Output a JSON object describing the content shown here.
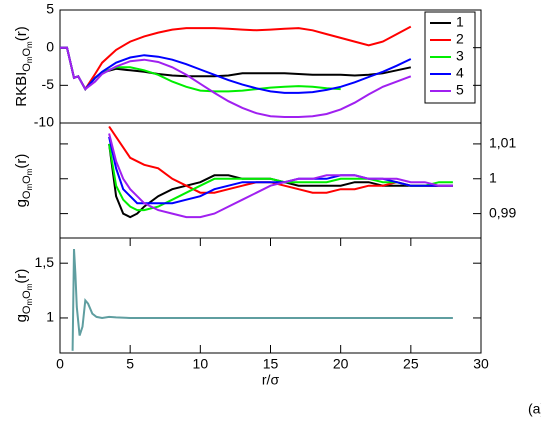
{
  "chart_data": [
    {
      "type": "line",
      "ylabel": [
        "RKBI",
        "O",
        "m",
        "O",
        "m",
        "(r)"
      ],
      "xlim": [
        0,
        30
      ],
      "ylim": [
        -10,
        5
      ],
      "yticks": [
        -10,
        -5,
        0,
        5
      ],
      "yaxis_side": "left",
      "legend": "upper right",
      "x": [
        0,
        0.5,
        1,
        1.3,
        1.8,
        2.5,
        3,
        4,
        5,
        6,
        7,
        8,
        9,
        10,
        11,
        12,
        13,
        14,
        15,
        16,
        17,
        18,
        19,
        20,
        21,
        22,
        23,
        24,
        25
      ],
      "series": [
        {
          "name": "1",
          "color": "#000000",
          "values": [
            0,
            0,
            -4,
            -3.8,
            -5.5,
            -4,
            -3.3,
            -2.8,
            -3,
            -3.2,
            -3.5,
            -3.7,
            -3.8,
            -3.8,
            -3.8,
            -3.7,
            -3.4,
            -3.4,
            -3.4,
            -3.4,
            -3.5,
            -3.6,
            -3.6,
            -3.6,
            -3.7,
            -3.6,
            -3.4,
            -3,
            -2.6
          ]
        },
        {
          "name": "2",
          "color": "#ff0000",
          "values": [
            0,
            0,
            -4,
            -3.8,
            -5.5,
            -3.5,
            -2,
            -0.3,
            0.8,
            1.5,
            2,
            2.4,
            2.6,
            2.6,
            2.6,
            2.5,
            2.4,
            2.3,
            2.4,
            2.5,
            2.6,
            2.3,
            1.8,
            1.3,
            0.8,
            0.3,
            0.8,
            1.8,
            2.8
          ]
        },
        {
          "name": "3",
          "color": "#00ee00",
          "values": [
            0,
            0,
            -4,
            -3.8,
            -5.5,
            -4,
            -3.3,
            -2.6,
            -2.6,
            -3,
            -3.6,
            -4.5,
            -5.2,
            -5.7,
            -5.8,
            -5.8,
            -5.7,
            -5.5,
            -5.3,
            -5.2,
            -5.1,
            -5.2,
            -5.4,
            -5.5,
            null,
            null,
            null,
            null,
            null
          ]
        },
        {
          "name": "4",
          "color": "#0000ff",
          "values": [
            0,
            0,
            -4,
            -3.8,
            -5.5,
            -4,
            -3.2,
            -2,
            -1.3,
            -1,
            -1.2,
            -1.6,
            -2.2,
            -2.9,
            -3.6,
            -4.3,
            -4.9,
            -5.4,
            -5.8,
            -6,
            -6,
            -5.9,
            -5.6,
            -5.2,
            -4.6,
            -3.9,
            -3.2,
            -2.4,
            -1.5
          ]
        },
        {
          "name": "5",
          "color": "#a020f0",
          "values": [
            0,
            0,
            -4,
            -3.8,
            -5.5,
            -4.5,
            -3.5,
            -2.5,
            -1.8,
            -1.6,
            -1.9,
            -2.6,
            -3.6,
            -4.8,
            -6,
            -7.1,
            -8,
            -8.7,
            -9.1,
            -9.2,
            -9.2,
            -9.1,
            -8.8,
            -8.2,
            -7.3,
            -6.2,
            -5.2,
            -4.5,
            -3.8
          ]
        }
      ]
    },
    {
      "type": "line",
      "ylabel": [
        "g",
        "O",
        "m",
        "O",
        "m",
        "(r)"
      ],
      "xlim": [
        0,
        30
      ],
      "ylim": [
        0.983,
        1.016
      ],
      "yticks": [
        {
          "value": 0.99,
          "label": "0,99"
        },
        1,
        {
          "value": 1.01,
          "label": "1,01"
        }
      ],
      "yaxis_side": "right",
      "x": [
        3.5,
        4,
        4.5,
        5,
        5.5,
        6,
        7,
        8,
        9,
        10,
        11,
        12,
        13,
        14,
        15,
        16,
        17,
        18,
        19,
        20,
        21,
        22,
        23,
        24,
        25,
        26,
        27,
        28
      ],
      "series": [
        {
          "color": "#000000",
          "values": [
            1.01,
            0.995,
            0.99,
            0.989,
            0.99,
            0.992,
            0.995,
            0.997,
            0.998,
            0.999,
            1.001,
            1.001,
            1.0,
            1.0,
            1.0,
            0.999,
            0.998,
            0.998,
            0.998,
            0.998,
            0.999,
            0.999,
            0.998,
            0.998,
            0.998,
            0.998,
            0.998,
            0.998
          ]
        },
        {
          "color": "#ff0000",
          "values": [
            1.015,
            1.012,
            1.009,
            1.006,
            1.005,
            1.004,
            1.003,
            1.0,
            0.998,
            0.996,
            0.996,
            0.997,
            0.998,
            0.999,
            0.999,
            0.998,
            0.997,
            0.996,
            0.996,
            0.997,
            0.997,
            0.998,
            0.998,
            0.999,
            0.998,
            0.998,
            0.998,
            0.998
          ]
        },
        {
          "color": "#00ee00",
          "values": [
            1.01,
            0.998,
            0.994,
            0.992,
            0.991,
            0.991,
            0.992,
            0.994,
            0.996,
            0.998,
            1.0,
            1.0,
            1.0,
            1.0,
            1.0,
            0.999,
            0.999,
            0.999,
            0.999,
            1.0,
            1.0,
            1.0,
            0.999,
            0.999,
            0.998,
            0.998,
            0.999,
            0.999
          ]
        },
        {
          "color": "#0000ff",
          "values": [
            1.012,
            1.003,
            0.997,
            0.995,
            0.993,
            0.993,
            0.993,
            0.993,
            0.994,
            0.995,
            0.997,
            0.998,
            0.999,
            0.999,
            0.999,
            0.999,
            1.0,
            1.0,
            1.0,
            1.001,
            1.001,
            1.0,
            1.0,
            0.999,
            0.998,
            0.998,
            0.998,
            0.998
          ]
        },
        {
          "color": "#a020f0",
          "values": [
            1.013,
            1.005,
            1.0,
            0.997,
            0.995,
            0.993,
            0.991,
            0.99,
            0.989,
            0.989,
            0.99,
            0.992,
            0.994,
            0.996,
            0.998,
            0.999,
            1.0,
            1.0,
            1.001,
            1.001,
            1.001,
            1.0,
            1.0,
            1.0,
            0.999,
            0.999,
            0.998,
            0.998
          ]
        }
      ]
    },
    {
      "type": "line",
      "ylabel": [
        "g",
        "O",
        "m",
        "O",
        "m",
        "(r)"
      ],
      "xlabel": "r/σ",
      "annotation": "(a)",
      "xlim": [
        0,
        30
      ],
      "xticks": [
        0,
        5,
        10,
        15,
        20,
        25,
        30
      ],
      "ylim": [
        0.68,
        1.73
      ],
      "yticks": [
        1,
        {
          "value": 1.5,
          "label": "1,5"
        }
      ],
      "yaxis_side": "left",
      "x": [
        0.9,
        1.0,
        1.1,
        1.2,
        1.4,
        1.6,
        1.8,
        2.0,
        2.3,
        2.6,
        3,
        3.5,
        4,
        5,
        6,
        8,
        10,
        15,
        20,
        25,
        28
      ],
      "series": [
        {
          "color": "#5f9ea0",
          "values": [
            0.7,
            1.63,
            1.4,
            1.1,
            0.84,
            0.92,
            1.16,
            1.13,
            1.04,
            1.01,
            1.0,
            1.01,
            1.005,
            1.0,
            1.0,
            1.0,
            1.0,
            1.0,
            1.0,
            1.0,
            1.0
          ]
        }
      ]
    }
  ]
}
